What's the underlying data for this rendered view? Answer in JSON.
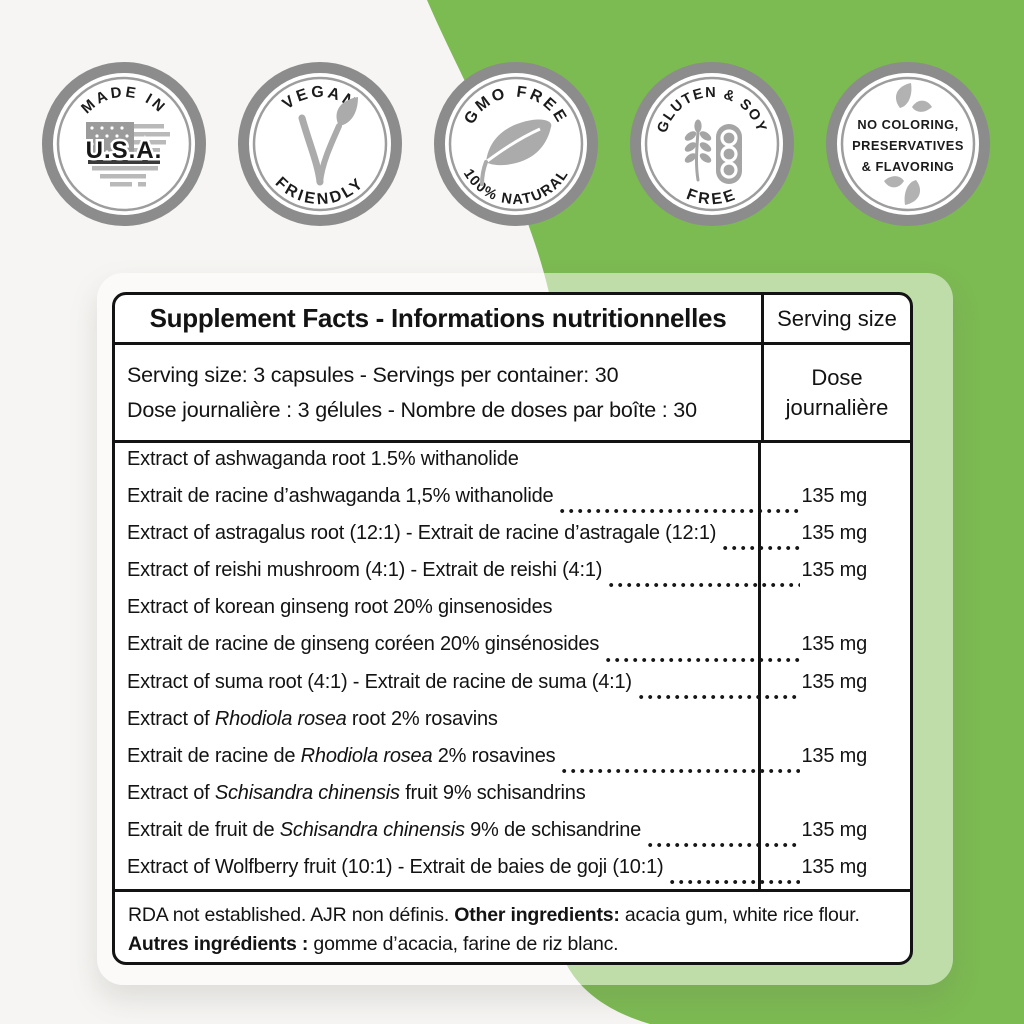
{
  "colors": {
    "background_green": "#7cba52",
    "background_offwhite": "#f6f5f3",
    "card_tint": "rgba(255,255,255,0.5)",
    "table_ink": "#131313",
    "badge_ring_gray": "#8c8c8c",
    "badge_icon_gray": "#a9a9a9"
  },
  "badges": [
    {
      "name": "made-in-usa",
      "top": "MADE IN",
      "center": "U.S.A."
    },
    {
      "name": "vegan-friendly",
      "top": "VEGAN",
      "bottom": "FRIENDLY"
    },
    {
      "name": "gmo-free",
      "top": "GMO FREE",
      "bottom": "100% NATURAL"
    },
    {
      "name": "gluten-soy-free",
      "top": "GLUTEN & SOY",
      "bottom": "FREE"
    },
    {
      "name": "no-additives",
      "lines": [
        "NO COLORING,",
        "PRESERVATIVES",
        "& FLAVORING"
      ]
    }
  ],
  "table": {
    "title": "Supplement Facts - Informations nutritionnelles",
    "col_header": "Serving size",
    "serving": {
      "line1": "Serving size: 3 capsules - Servings per container: 30",
      "line2": "Dose journalière : 3 gélules - Nombre de doses par boîte : 30",
      "col": "Dose journalière"
    },
    "rows": [
      {
        "segments": [
          {
            "t": "Extract of ashwaganda root 1.5% withanolide"
          }
        ],
        "value": null
      },
      {
        "segments": [
          {
            "t": "Extrait de racine d’ashwaganda 1,5% withanolide"
          }
        ],
        "value": "135 mg"
      },
      {
        "segments": [
          {
            "t": "Extract of astragalus root (12:1) - Extrait de racine d’astragale (12:1)"
          }
        ],
        "value": "135 mg"
      },
      {
        "segments": [
          {
            "t": "Extract of reishi mushroom (4:1) - Extrait de reishi (4:1)"
          }
        ],
        "value": "135 mg"
      },
      {
        "segments": [
          {
            "t": "Extract of korean ginseng root 20% ginsenosides"
          }
        ],
        "value": null
      },
      {
        "segments": [
          {
            "t": "Extrait de racine de ginseng coréen 20% ginsénosides"
          }
        ],
        "value": "135 mg"
      },
      {
        "segments": [
          {
            "t": "Extract of suma root (4:1) - Extrait de racine de suma (4:1)"
          }
        ],
        "value": "135 mg"
      },
      {
        "segments": [
          {
            "t": "Extract of "
          },
          {
            "t": "Rhodiola rosea",
            "i": true
          },
          {
            "t": " root 2% rosavins"
          }
        ],
        "value": null
      },
      {
        "segments": [
          {
            "t": "Extrait de racine de "
          },
          {
            "t": "Rhodiola rosea",
            "i": true
          },
          {
            "t": " 2% rosavines"
          }
        ],
        "value": "135 mg"
      },
      {
        "segments": [
          {
            "t": "Extract of "
          },
          {
            "t": "Schisandra chinensis",
            "i": true
          },
          {
            "t": " fruit 9% schisandrins"
          }
        ],
        "value": null
      },
      {
        "segments": [
          {
            "t": "Extrait de fruit de "
          },
          {
            "t": "Schisandra chinensis",
            "i": true
          },
          {
            "t": " 9% de schisandrine"
          }
        ],
        "value": "135 mg"
      },
      {
        "segments": [
          {
            "t": "Extract of Wolfberry fruit (10:1) - Extrait de baies de goji (10:1)"
          }
        ],
        "value": "135 mg"
      }
    ],
    "footer_lines": [
      [
        {
          "t": "RDA not established. AJR non définis. "
        },
        {
          "t": "Other ingredients:",
          "b": true
        },
        {
          "t": " acacia gum, white rice flour."
        }
      ],
      [
        {
          "t": "Autres ingrédients :",
          "b": true
        },
        {
          "t": " gomme d’acacia, farine de riz blanc."
        }
      ]
    ]
  }
}
